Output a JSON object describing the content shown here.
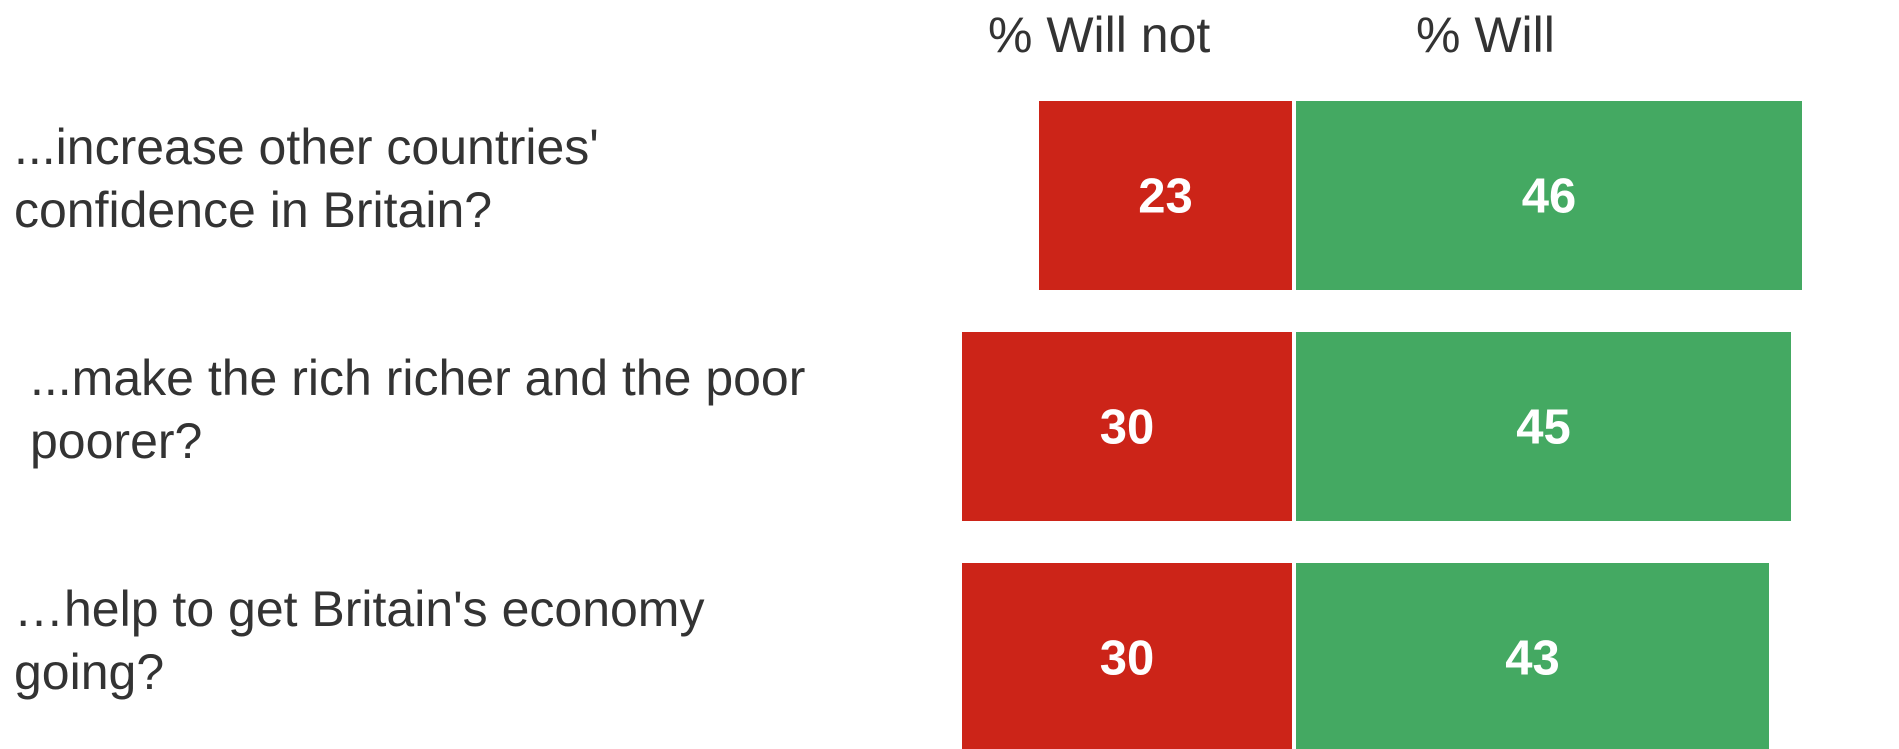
{
  "chart_data": {
    "type": "bar",
    "orientation": "horizontal-diverging",
    "series_headers": [
      "% Will not",
      "% Will"
    ],
    "categories": [
      {
        "lines": [
          "...increase other countries'",
          "confidence in Britain?"
        ]
      },
      {
        "lines": [
          "...make the rich richer and the poor",
          "poorer?"
        ]
      },
      {
        "lines": [
          "…help to get Britain's economy",
          "going?"
        ]
      }
    ],
    "series": [
      {
        "name": "% Will not",
        "values": [
          23,
          30,
          30
        ],
        "color": "#cc2418"
      },
      {
        "name": "% Will",
        "values": [
          46,
          45,
          43
        ],
        "color": "#44a962"
      }
    ]
  }
}
